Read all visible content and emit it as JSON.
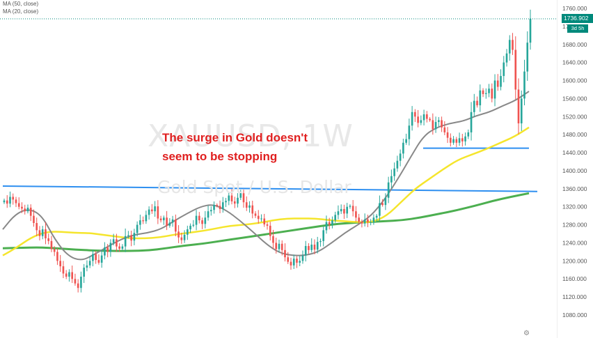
{
  "chart_data": {
    "type": "candlestick",
    "watermark_symbol": "XAUUSD, 1W",
    "watermark_name": "Gold Spot / U.S. Dollar",
    "legend": [
      "MA (50, close)",
      "MA (20, close)"
    ],
    "annotation": {
      "line1": "The surge in Gold doesn't",
      "line2": "seem to be stopping"
    },
    "last_price": "1736.902",
    "countdown": "3d 5h",
    "ylim": [
      1080,
      1780
    ],
    "y_ticks": [
      1080,
      1120,
      1160,
      1200,
      1240,
      1280,
      1320,
      1360,
      1400,
      1440,
      1480,
      1520,
      1560,
      1600,
      1640,
      1680,
      1720,
      1760
    ],
    "y_tick_labels": [
      "1080.000",
      "1120.000",
      "1160.000",
      "1200.000",
      "1240.000",
      "1280.000",
      "1320.000",
      "1360.000",
      "1400.000",
      "1440.000",
      "1480.000",
      "1520.000",
      "1560.000",
      "1600.000",
      "1640.000",
      "1680.000",
      "1720.000",
      "1760.000"
    ],
    "closes": [
      1334,
      1327,
      1342,
      1336,
      1328,
      1320,
      1316,
      1310,
      1318,
      1300,
      1284,
      1268,
      1255,
      1270,
      1250,
      1244,
      1226,
      1220,
      1200,
      1188,
      1172,
      1165,
      1175,
      1160,
      1150,
      1140,
      1165,
      1185,
      1190,
      1200,
      1215,
      1202,
      1196,
      1212,
      1230,
      1220,
      1240,
      1248,
      1232,
      1227,
      1232,
      1255,
      1257,
      1245,
      1262,
      1280,
      1290,
      1288,
      1302,
      1314,
      1310,
      1321,
      1294,
      1290,
      1296,
      1278,
      1285,
      1292,
      1265,
      1252,
      1246,
      1258,
      1270,
      1278,
      1280,
      1300,
      1290,
      1282,
      1296,
      1310,
      1313,
      1324,
      1322,
      1315,
      1330,
      1333,
      1345,
      1332,
      1327,
      1340,
      1350,
      1330,
      1318,
      1323,
      1305,
      1300,
      1293,
      1294,
      1281,
      1278,
      1255,
      1240,
      1226,
      1238,
      1224,
      1208,
      1198,
      1190,
      1205,
      1196,
      1200,
      1212,
      1233,
      1224,
      1236,
      1225,
      1242,
      1244,
      1268,
      1286,
      1280,
      1290,
      1302,
      1310,
      1315,
      1305,
      1320,
      1322,
      1310,
      1296,
      1287,
      1283,
      1292,
      1286,
      1286,
      1296,
      1300,
      1328,
      1324,
      1340,
      1374,
      1388,
      1405,
      1422,
      1438,
      1462,
      1470,
      1500,
      1530,
      1520,
      1506,
      1512,
      1525,
      1515,
      1512,
      1492,
      1508,
      1512,
      1496,
      1485,
      1473,
      1462,
      1470,
      1462,
      1472,
      1465,
      1476,
      1485,
      1530,
      1555,
      1545,
      1578,
      1570,
      1572,
      1582,
      1560,
      1600,
      1586,
      1610,
      1640,
      1660,
      1690,
      1668,
      1580,
      1505,
      1560,
      1620,
      1684,
      1736.902
    ],
    "ma20_anchor_values": [
      1270,
      1305,
      1316,
      1300,
      1245,
      1210,
      1200,
      1215,
      1232,
      1248,
      1258,
      1262,
      1270,
      1288,
      1305,
      1320,
      1326,
      1312,
      1290,
      1265,
      1238,
      1218,
      1212,
      1212,
      1220,
      1240,
      1262,
      1280,
      1300,
      1335,
      1380,
      1430,
      1478,
      1496,
      1505,
      1510,
      1522,
      1530,
      1544,
      1556,
      1576
    ],
    "ma50_anchor_values": [
      1212,
      1230,
      1252,
      1264,
      1265,
      1262,
      1262,
      1258,
      1254,
      1250,
      1250,
      1252,
      1258,
      1262,
      1266,
      1272,
      1278,
      1280,
      1284,
      1290,
      1294,
      1294,
      1294,
      1290,
      1288,
      1286,
      1286,
      1300,
      1330,
      1360,
      1382,
      1404,
      1424,
      1436,
      1448,
      1462,
      1476,
      1496
    ],
    "ma200_anchor_values": [
      1228,
      1229,
      1230,
      1228,
      1225,
      1223,
      1222,
      1222,
      1223,
      1228,
      1234,
      1238,
      1244,
      1250,
      1256,
      1262,
      1268,
      1274,
      1280,
      1284,
      1286,
      1288,
      1290,
      1296,
      1304,
      1312,
      1322,
      1333,
      1342,
      1350
    ],
    "resistance_line": {
      "start": 1366,
      "end": 1354
    },
    "support_line": {
      "value": 1450
    },
    "colors": {
      "up": "#26a69a",
      "down": "#ef5350",
      "ma20": "#888888",
      "ma50": "#f5e52c",
      "ma200": "#4caf50",
      "hline": "#2e8ff0",
      "axis_text": "#555555",
      "price_tag": "#00897b"
    }
  }
}
